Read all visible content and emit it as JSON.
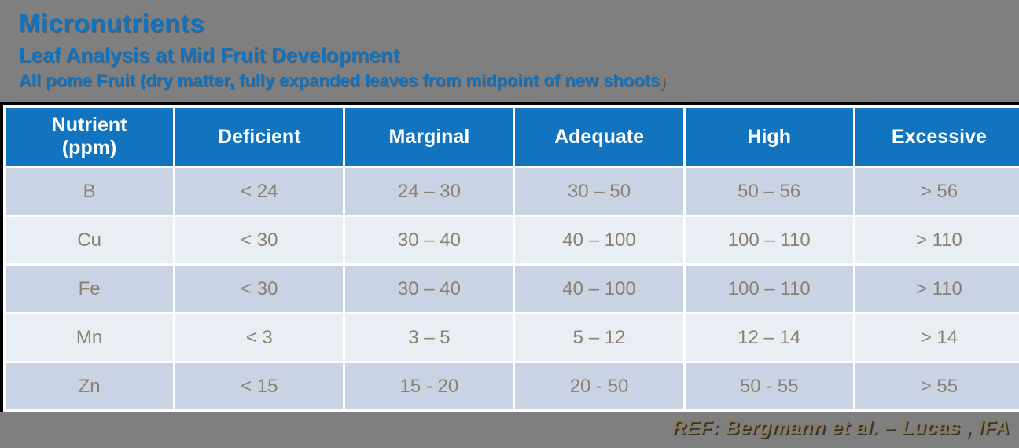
{
  "slide": {
    "title": "Micronutrients",
    "subtitle": "Leaf Analysis at Mid Fruit Development",
    "subtitle2": "All pome Fruit (dry matter, fully expanded leaves from midpoint of new shoots",
    "subtitle2_paren": ")",
    "reference": "REF: Bergmann et al. – Lucas , IFA"
  },
  "colors": {
    "background_gray": "#7F7F7F",
    "title_blue": "#1173BD",
    "header_blue": "#1274BE",
    "row_stripe_dark": "#C9D3E3",
    "row_stripe_light": "#E9EDF4",
    "cell_text_brown_gray": "#8B8170",
    "accent_tan": "#8A7B60",
    "table_border_black": "#000000"
  },
  "table": {
    "header": {
      "nutrient_line1": "Nutrient",
      "nutrient_line2": "(ppm)",
      "cols": [
        "Deficient",
        "Marginal",
        "Adequate",
        "High",
        "Excessive"
      ]
    },
    "rows": [
      [
        "B",
        "< 24",
        "24 – 30",
        "30 – 50",
        "50 – 56",
        "> 56"
      ],
      [
        "Cu",
        "< 30",
        "30 – 40",
        "40 – 100",
        "100 – 110",
        "> 110"
      ],
      [
        "Fe",
        "< 30",
        "30 – 40",
        "40 – 100",
        "100 – 110",
        "> 110"
      ],
      [
        "Mn",
        "< 3",
        "3 – 5",
        "5 – 12",
        "12 – 14",
        "> 14"
      ],
      [
        "Zn",
        "< 15",
        "15 - 20",
        "20 - 50",
        "50 - 55",
        "> 55"
      ]
    ]
  }
}
